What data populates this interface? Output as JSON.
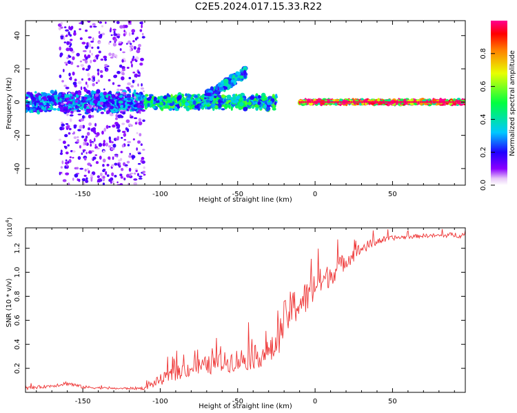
{
  "title": "C2E5.2024.017.15.33.R22",
  "chart_data": [
    {
      "type": "heatmap",
      "xlabel": "Height of straight line (km)",
      "ylabel": "Frequency (Hz)",
      "xlim": [
        -187,
        97
      ],
      "ylim": [
        -50,
        49
      ],
      "x_ticks": [
        "-150",
        "-100",
        "-50",
        "0",
        "50"
      ],
      "x_tick_values": [
        -150,
        -100,
        -50,
        0,
        50
      ],
      "y_ticks": [
        "-40",
        "-20",
        "0",
        "20",
        "40"
      ],
      "y_tick_values": [
        -40,
        -20,
        0,
        20,
        40
      ],
      "colorbar": {
        "label": "Normalized spectral amplitude",
        "range": [
          0,
          1
        ],
        "ticks": [
          "0.0",
          "0.2",
          "0.4",
          "0.6",
          "0.8"
        ],
        "tick_values": [
          0.0,
          0.2,
          0.4,
          0.6,
          0.8
        ],
        "colormap": "rainbow"
      },
      "features": [
        {
          "region": "noisy dispersed band",
          "x_range": [
            -187,
            -110
          ],
          "freq_center": 0,
          "freq_halfwidth": 5,
          "amplitude": 0.3
        },
        {
          "region": "scattered vertical streaks",
          "x_range": [
            -165,
            -110
          ],
          "freq_range": [
            -50,
            49
          ],
          "amplitude": 0.12
        },
        {
          "region": "narrowing band",
          "x_range": [
            -110,
            -25
          ],
          "freq_center": 0,
          "freq_halfwidth": 3.5,
          "amplitude": 0.45
        },
        {
          "region": "rising branch",
          "x_range": [
            -70,
            -45
          ],
          "freq_end": 18,
          "amplitude": 0.3
        },
        {
          "region": "strong line",
          "x_range": [
            -10,
            97
          ],
          "freq_center": 0,
          "freq_halfwidth": 1,
          "amplitude": 0.95
        }
      ]
    },
    {
      "type": "line",
      "xlabel": "Height of straight line (km)",
      "ylabel": "SNR (10 * v/v)",
      "y_multiplier": "(x10",
      "y_multiplier_exp": "4",
      "y_multiplier_close": ")",
      "xlim": [
        -187,
        97
      ],
      "ylim": [
        0,
        13700
      ],
      "x_ticks": [
        "-150",
        "-100",
        "-50",
        "0",
        "50"
      ],
      "x_tick_values": [
        -150,
        -100,
        -50,
        0,
        50
      ],
      "y_ticks": [
        "0.2",
        "0.4",
        "0.6",
        "0.8",
        "1.0",
        "1.2"
      ],
      "y_tick_values": [
        2000,
        4000,
        6000,
        8000,
        10000,
        12000
      ],
      "series": [
        {
          "color": "#ee3333",
          "x": [
            -187,
            -170,
            -160,
            -150,
            -130,
            -110,
            -100,
            -90,
            -80,
            -70,
            -60,
            -50,
            -40,
            -30,
            -25,
            -20,
            -15,
            -10,
            -5,
            0,
            5,
            10,
            20,
            30,
            40,
            50,
            60,
            70,
            80,
            90,
            97
          ],
          "values": [
            300,
            500,
            700,
            400,
            300,
            300,
            900,
            1400,
            1800,
            2000,
            2200,
            2400,
            2600,
            3000,
            3500,
            5500,
            6500,
            7000,
            7500,
            8500,
            9000,
            9500,
            10800,
            11800,
            12500,
            12800,
            12900,
            13000,
            13000,
            13050,
            13000
          ],
          "noise": [
            200,
            200,
            300,
            200,
            100,
            200,
            700,
            900,
            1100,
            1200,
            1300,
            1500,
            1500,
            1600,
            1800,
            2500,
            2500,
            2200,
            2200,
            2200,
            1600,
            1500,
            1100,
            800,
            500,
            300,
            250,
            250,
            250,
            350,
            400
          ]
        }
      ]
    }
  ]
}
